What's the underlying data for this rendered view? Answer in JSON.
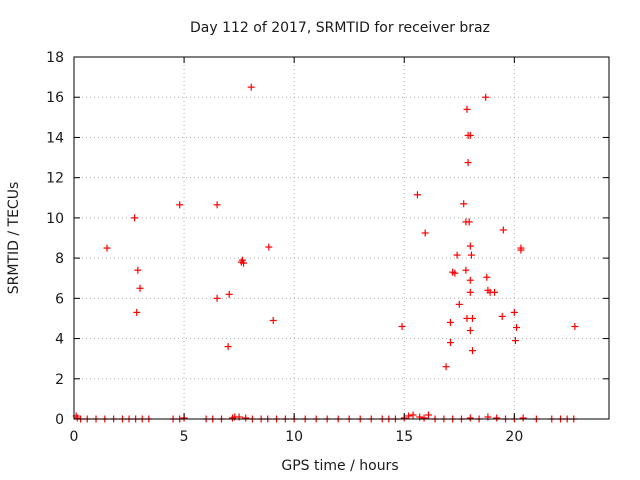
{
  "chart_data": {
    "type": "scatter",
    "title": "Day 112 of 2017, SRMTID for receiver braz",
    "xlabel": "GPS time / hours",
    "ylabel": "SRMTID / TECUs",
    "xlim": [
      0,
      24.3
    ],
    "ylim": [
      0,
      18
    ],
    "xticks": [
      0,
      5,
      10,
      15,
      20
    ],
    "yticks": [
      0,
      2,
      4,
      6,
      8,
      10,
      12,
      14,
      16,
      18
    ],
    "xtick_labels": [
      "0",
      "5",
      "10",
      "15",
      "20"
    ],
    "ytick_labels": [
      "0",
      "2",
      "4",
      "6",
      "8",
      "10",
      "12",
      "14",
      "16",
      "18"
    ],
    "grid": true,
    "marker": "plus",
    "color": "#ff0000",
    "series": [
      {
        "name": "SRMTID",
        "x": [
          1.5,
          2.75,
          2.85,
          2.9,
          3.0,
          4.8,
          6.5,
          6.5,
          7.0,
          7.05,
          7.6,
          7.65,
          7.7,
          8.05,
          8.85,
          9.05,
          14.9,
          15.6,
          15.95,
          16.9,
          17.1,
          17.1,
          17.2,
          17.3,
          17.4,
          17.5,
          17.7,
          17.8,
          17.8,
          17.85,
          17.85,
          17.9,
          17.9,
          17.95,
          18.0,
          18.0,
          18.0,
          18.0,
          18.0,
          18.05,
          18.1,
          18.1,
          18.7,
          18.75,
          18.8,
          18.9,
          19.1,
          19.45,
          19.5,
          20.0,
          20.05,
          20.1,
          20.3,
          20.3,
          22.75,
          0.1,
          0.15,
          0.3,
          0.6,
          1.0,
          1.4,
          1.8,
          2.2,
          2.5,
          2.8,
          3.1,
          3.4,
          4.5,
          4.8,
          5.0,
          6.0,
          6.3,
          6.7,
          7.2,
          7.3,
          7.5,
          7.8,
          8.1,
          8.5,
          8.8,
          9.2,
          9.6,
          10.0,
          10.5,
          11.0,
          11.5,
          12.0,
          12.5,
          13.0,
          13.5,
          14.0,
          14.3,
          14.6,
          15.0,
          15.2,
          15.4,
          15.7,
          15.9,
          16.1,
          16.4,
          16.8,
          17.2,
          17.6,
          18.0,
          18.4,
          18.8,
          19.2,
          19.6,
          20.0,
          20.4,
          21.0,
          21.7,
          22.1,
          22.4,
          22.7
        ],
        "y": [
          8.5,
          10.0,
          5.3,
          7.4,
          6.5,
          10.65,
          10.65,
          6.0,
          3.6,
          6.2,
          7.8,
          7.9,
          7.75,
          16.5,
          8.55,
          4.9,
          4.6,
          11.15,
          9.25,
          2.6,
          3.8,
          4.8,
          7.3,
          7.25,
          8.15,
          5.7,
          10.7,
          9.8,
          7.4,
          5.0,
          15.4,
          12.75,
          14.1,
          9.8,
          14.1,
          8.6,
          6.9,
          6.3,
          4.4,
          8.15,
          5.0,
          3.4,
          16.0,
          7.05,
          6.4,
          6.3,
          6.3,
          5.1,
          9.4,
          5.3,
          3.9,
          4.55,
          8.4,
          8.5,
          4.6,
          0.15,
          0.05,
          0.0,
          0.0,
          0.0,
          0.0,
          0.0,
          0.0,
          0.0,
          0.0,
          0.0,
          0.0,
          0.0,
          0.0,
          0.05,
          0.0,
          0.0,
          0.0,
          0.05,
          0.1,
          0.1,
          0.05,
          0.0,
          0.0,
          0.0,
          0.0,
          0.0,
          0.0,
          0.0,
          0.0,
          0.0,
          0.0,
          0.0,
          0.0,
          0.0,
          0.0,
          0.0,
          0.0,
          0.05,
          0.15,
          0.2,
          0.1,
          0.05,
          0.2,
          0.0,
          0.0,
          0.0,
          0.0,
          0.05,
          0.0,
          0.1,
          0.05,
          0.0,
          0.0,
          0.05,
          0.0,
          0.0,
          0.0,
          0.0,
          0.0
        ]
      }
    ]
  }
}
